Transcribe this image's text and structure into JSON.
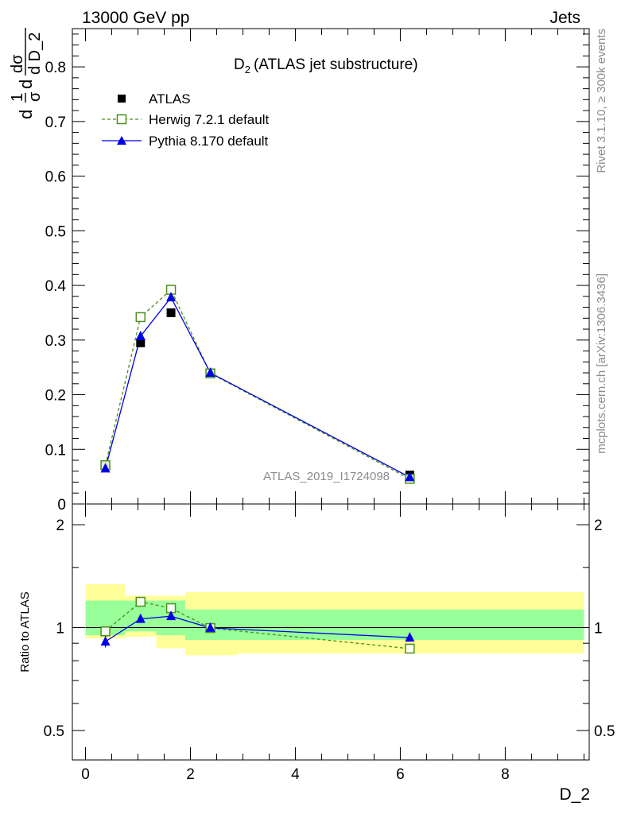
{
  "header": {
    "left": "13000 GeV pp",
    "right": "Jets"
  },
  "side_text": {
    "rivet": "Rivet 3.1.10, ≥ 300k events",
    "mcplots": "mcplots.cern.ch [arXiv:1306.3436]"
  },
  "watermark": "ATLAS_2019_I1724098",
  "colors": {
    "atlas": "#000000",
    "herwig": "#4b8f1c",
    "pythia": "#0000e6",
    "band_inner": "#99ff99",
    "band_outer": "#ffff99"
  },
  "chart_data": [
    {
      "type": "line",
      "title": "D",
      "title_subscript": "2",
      "title_suffix": "(ATLAS jet substructure)",
      "ylabel": {
        "a": "d",
        "b": "1",
        "c": "σ",
        "d": "d",
        "e": "dσ",
        "f": "d D_2"
      },
      "ylim": [
        0,
        0.87
      ],
      "yticks": [
        0.1,
        0.2,
        0.3,
        0.4,
        0.5,
        0.6,
        0.7,
        0.8
      ],
      "ytick_labels": [
        "0.1",
        "0.2",
        "0.3",
        "0.4",
        "0.5",
        "0.6",
        "0.7",
        "0.8"
      ],
      "ytick_zero_label": "0",
      "x": [
        0.38,
        1.05,
        1.63,
        2.38,
        6.18
      ],
      "series": [
        {
          "name": "ATLAS",
          "marker": "filled-square",
          "values": [
            0.072,
            0.295,
            0.35,
            0.24,
            0.053
          ]
        },
        {
          "name": "Herwig 7.2.1 default",
          "marker": "open-square",
          "style": "dashed",
          "values": [
            0.071,
            0.342,
            0.392,
            0.239,
            0.046
          ]
        },
        {
          "name": "Pythia 8.170 default",
          "marker": "filled-triangle",
          "style": "solid",
          "values": [
            0.065,
            0.307,
            0.378,
            0.24,
            0.049
          ]
        }
      ],
      "legend_position": "top-left"
    },
    {
      "type": "line",
      "ylabel": "Ratio to ATLAS",
      "ylim": [
        0.41,
        2.3
      ],
      "log_y": true,
      "ytick_labels": [
        "0.5",
        "1",
        "2"
      ],
      "yticks": [
        0.5,
        1,
        2
      ],
      "xlabel": "D_2",
      "xlim": [
        -0.25,
        9.6
      ],
      "xticks": [
        0,
        2,
        4,
        6,
        8
      ],
      "xtick_labels": [
        "0",
        "2",
        "4",
        "6",
        "8"
      ],
      "x": [
        0.38,
        1.05,
        1.63,
        2.38,
        6.18
      ],
      "series": [
        {
          "name": "Herwig 7.2.1 default",
          "values": [
            0.975,
            1.19,
            1.14,
            0.997,
            0.868
          ]
        },
        {
          "name": "Pythia 8.170 default",
          "values": [
            0.91,
            1.06,
            1.08,
            0.998,
            0.935
          ],
          "errors": [
            0.035,
            0.015,
            0.015,
            0.01,
            0.01
          ]
        }
      ],
      "bands": [
        {
          "x0": 0,
          "x1": 0.75,
          "inner": [
            0.95,
            1.2
          ],
          "outer": [
            0.93,
            1.34
          ]
        },
        {
          "x0": 0.75,
          "x1": 1.35,
          "inner": [
            0.975,
            1.2
          ],
          "outer": [
            0.94,
            1.24
          ]
        },
        {
          "x0": 1.35,
          "x1": 1.9,
          "inner": [
            0.95,
            1.2
          ],
          "outer": [
            0.87,
            1.24
          ]
        },
        {
          "x0": 1.9,
          "x1": 2.9,
          "inner": [
            0.92,
            1.13
          ],
          "outer": [
            0.83,
            1.27
          ]
        },
        {
          "x0": 2.9,
          "x1": 9.5,
          "inner": [
            0.92,
            1.13
          ],
          "outer": [
            0.84,
            1.27
          ]
        }
      ]
    }
  ]
}
